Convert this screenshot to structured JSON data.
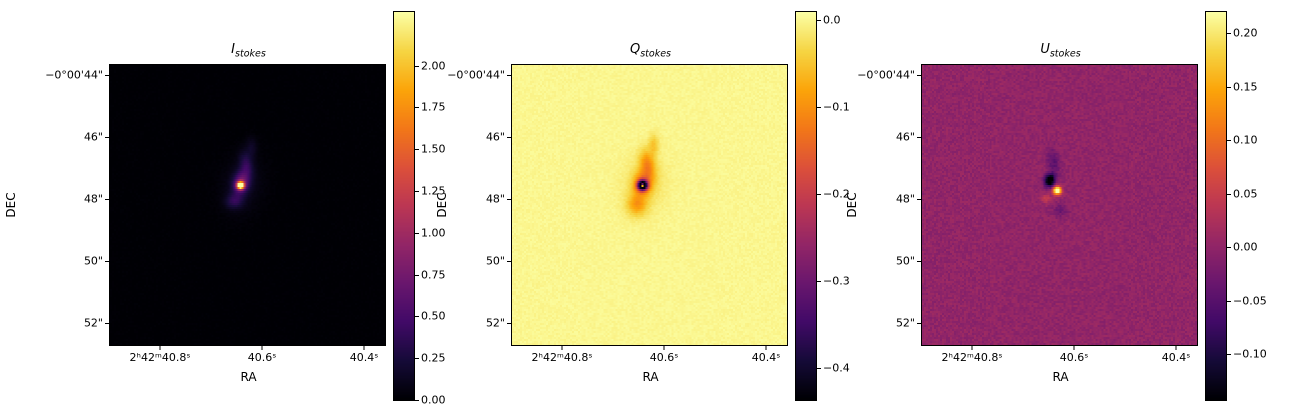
{
  "figure": {
    "background": "#ffffff",
    "colormap": "inferno",
    "panel_count": 3,
    "colorbar_position": "right"
  },
  "chart_data": [
    {
      "type": "heatmap",
      "title": "I_stokes",
      "title_var": "I",
      "title_sub": "stokes",
      "xlabel": "RA",
      "ylabel": "DEC",
      "x_tick_labels": [
        "2ʰ42ᵐ40.8ˢ",
        "40.6ˢ",
        "40.4ˢ"
      ],
      "x_tick_values_s": [
        40.8,
        40.6,
        40.4
      ],
      "y_tick_labels": [
        "−0°00'44\"",
        "46\"",
        "48\"",
        "50\"",
        "52\""
      ],
      "y_tick_values_arcsec": [
        44,
        46,
        48,
        50,
        52
      ],
      "colormap": "inferno",
      "vmin": 0.0,
      "vmax": 2.32,
      "colorbar_tick_labels": [
        "2.00",
        "1.75",
        "1.50",
        "1.25",
        "1.00",
        "0.75",
        "0.50",
        "0.25",
        "0.00"
      ],
      "colorbar_tick_values": [
        2.0,
        1.75,
        1.5,
        1.25,
        1.0,
        0.75,
        0.5,
        0.25,
        0.0
      ],
      "background_value": 0.0,
      "noise": 0.012,
      "sources": [
        {
          "x": 0.475,
          "y": 0.43,
          "sx": 0.009,
          "sy": 0.009,
          "angle": 0,
          "amp": 2.6
        },
        {
          "x": 0.478,
          "y": 0.42,
          "sx": 0.02,
          "sy": 0.03,
          "angle": 15,
          "amp": 0.7
        },
        {
          "x": 0.452,
          "y": 0.487,
          "sx": 0.022,
          "sy": 0.018,
          "angle": 0,
          "amp": 0.3
        },
        {
          "x": 0.495,
          "y": 0.352,
          "sx": 0.016,
          "sy": 0.03,
          "angle": -12,
          "amp": 0.3
        },
        {
          "x": 0.48,
          "y": 0.43,
          "sx": 0.05,
          "sy": 0.07,
          "angle": 10,
          "amp": 0.1
        },
        {
          "x": 0.515,
          "y": 0.295,
          "sx": 0.014,
          "sy": 0.026,
          "angle": 0,
          "amp": 0.14
        }
      ]
    },
    {
      "type": "heatmap",
      "title": "Q_stokes",
      "title_var": "Q",
      "title_sub": "stokes",
      "xlabel": "RA",
      "ylabel": "DEC",
      "x_tick_labels": [
        "2ʰ42ᵐ40.8ˢ",
        "40.6ˢ",
        "40.4ˢ"
      ],
      "x_tick_values_s": [
        40.8,
        40.6,
        40.4
      ],
      "y_tick_labels": [
        "−0°00'44\"",
        "46\"",
        "48\"",
        "50\"",
        "52\""
      ],
      "y_tick_values_arcsec": [
        44,
        46,
        48,
        50,
        52
      ],
      "colormap": "inferno",
      "vmin": -0.437,
      "vmax": 0.009,
      "colorbar_tick_labels": [
        "0.0",
        "−0.1",
        "−0.2",
        "−0.3",
        "−0.4"
      ],
      "colorbar_tick_values": [
        0.0,
        -0.1,
        -0.2,
        -0.3,
        -0.4
      ],
      "background_value": 0.0,
      "noise": 0.005,
      "sources": [
        {
          "x": 0.475,
          "y": 0.43,
          "sx": 0.012,
          "sy": 0.012,
          "angle": 0,
          "amp": -0.5
        },
        {
          "x": 0.475,
          "y": 0.43,
          "sx": 0.004,
          "sy": 0.004,
          "angle": 0,
          "amp": 0.65
        },
        {
          "x": 0.478,
          "y": 0.42,
          "sx": 0.024,
          "sy": 0.034,
          "angle": 15,
          "amp": -0.12
        },
        {
          "x": 0.492,
          "y": 0.35,
          "sx": 0.018,
          "sy": 0.032,
          "angle": -12,
          "amp": -0.09
        },
        {
          "x": 0.455,
          "y": 0.5,
          "sx": 0.024,
          "sy": 0.026,
          "angle": 0,
          "amp": -0.08
        },
        {
          "x": 0.515,
          "y": 0.285,
          "sx": 0.013,
          "sy": 0.026,
          "angle": 0,
          "amp": -0.05
        },
        {
          "x": 0.48,
          "y": 0.43,
          "sx": 0.055,
          "sy": 0.075,
          "angle": 10,
          "amp": -0.025
        }
      ]
    },
    {
      "type": "heatmap",
      "title": "U_stokes",
      "title_var": "U",
      "title_sub": "stokes",
      "xlabel": "RA",
      "ylabel": "DEC",
      "x_tick_labels": [
        "2ʰ42ᵐ40.8ˢ",
        "40.6ˢ",
        "40.4ˢ"
      ],
      "x_tick_values_s": [
        40.8,
        40.6,
        40.4
      ],
      "y_tick_labels": [
        "−0°00'44\"",
        "46\"",
        "48\"",
        "50\"",
        "52\""
      ],
      "y_tick_values_arcsec": [
        44,
        46,
        48,
        50,
        52
      ],
      "colormap": "inferno",
      "vmin": -0.143,
      "vmax": 0.22,
      "colorbar_tick_labels": [
        "0.20",
        "0.15",
        "0.10",
        "0.05",
        "0.00",
        "−0.05",
        "−0.10"
      ],
      "colorbar_tick_values": [
        0.2,
        0.15,
        0.1,
        0.05,
        0.0,
        -0.05,
        -0.1
      ],
      "background_value": 0.0,
      "noise": 0.012,
      "sources": [
        {
          "x": 0.465,
          "y": 0.412,
          "sx": 0.013,
          "sy": 0.016,
          "angle": 10,
          "amp": -0.19
        },
        {
          "x": 0.492,
          "y": 0.448,
          "sx": 0.01,
          "sy": 0.01,
          "angle": 0,
          "amp": 0.3
        },
        {
          "x": 0.478,
          "y": 0.345,
          "sx": 0.015,
          "sy": 0.032,
          "angle": -12,
          "amp": -0.05
        },
        {
          "x": 0.503,
          "y": 0.52,
          "sx": 0.018,
          "sy": 0.016,
          "angle": 0,
          "amp": -0.035
        },
        {
          "x": 0.452,
          "y": 0.478,
          "sx": 0.013,
          "sy": 0.011,
          "angle": 0,
          "amp": 0.045
        }
      ]
    }
  ]
}
